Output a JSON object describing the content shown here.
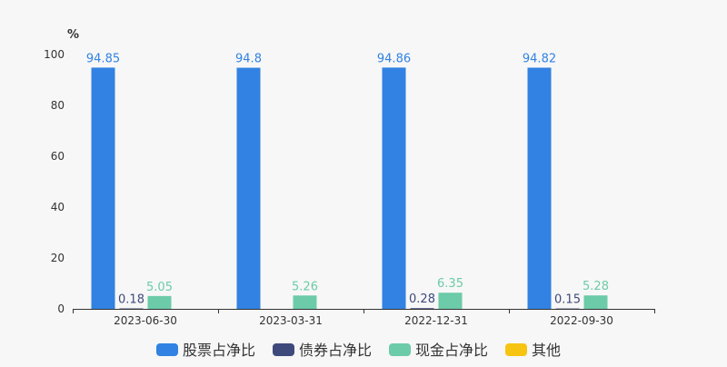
{
  "chart_data": {
    "type": "bar",
    "ylabel": "%",
    "ylim": [
      0,
      100
    ],
    "yticks": [
      0,
      20,
      40,
      60,
      80,
      100
    ],
    "grid": false,
    "legend_position": "bottom",
    "categories": [
      "2023-06-30",
      "2023-03-31",
      "2022-12-31",
      "2022-09-30"
    ],
    "series": [
      {
        "name": "股票占净比",
        "color": "#3182e2",
        "values": [
          94.85,
          94.8,
          94.86,
          94.82
        ],
        "labels": [
          "94.85",
          "94.8",
          "94.86",
          "94.82"
        ]
      },
      {
        "name": "债券占净比",
        "color": "#3e4a7c",
        "values": [
          0.18,
          null,
          0.28,
          0.15
        ],
        "labels": [
          "0.18",
          "",
          "0.28",
          "0.15"
        ]
      },
      {
        "name": "现金占净比",
        "color": "#6ccba8",
        "values": [
          5.05,
          5.26,
          6.35,
          5.28
        ],
        "labels": [
          "5.05",
          "5.26",
          "6.35",
          "5.28"
        ]
      },
      {
        "name": "其他",
        "color": "#f7c412",
        "values": [
          null,
          null,
          null,
          null
        ],
        "labels": [
          "",
          "",
          "",
          ""
        ]
      }
    ]
  }
}
